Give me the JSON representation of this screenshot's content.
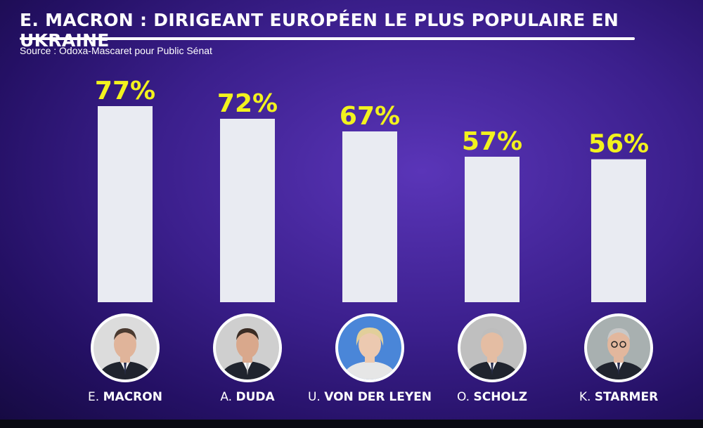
{
  "header": {
    "title": "E. MACRON : DIRIGEANT EUROPÉEN LE PLUS POPULAIRE EN UKRAINE",
    "source": "Source : Odoxa-Mascaret pour Public Sénat"
  },
  "colors": {
    "bar": "#e9ebf2",
    "value_label": "#f2f21e",
    "text": "#ffffff"
  },
  "chart_data": {
    "type": "bar",
    "title": "E. MACRON : DIRIGEANT EUROPÉEN LE PLUS POPULAIRE EN UKRAINE",
    "categories": [
      "E. MACRON",
      "A. DUDA",
      "U. VON DER LEYEN",
      "O. SCHOLZ",
      "K. STARMER"
    ],
    "values": [
      77,
      72,
      67,
      57,
      56
    ],
    "value_labels": [
      "77%",
      "72%",
      "67%",
      "57%",
      "56%"
    ],
    "unit": "%",
    "grid": false,
    "legend": "none"
  },
  "leaders": [
    {
      "initial": "E.",
      "surname": "MACRON",
      "photo_icon": "macron-portrait-icon"
    },
    {
      "initial": "A.",
      "surname": "DUDA",
      "photo_icon": "duda-portrait-icon"
    },
    {
      "initial": "U.",
      "surname": "VON DER LEYEN",
      "photo_icon": "von-der-leyen-portrait-icon"
    },
    {
      "initial": "O.",
      "surname": "SCHOLZ",
      "photo_icon": "scholz-portrait-icon"
    },
    {
      "initial": "K.",
      "surname": "STARMER",
      "photo_icon": "starmer-portrait-icon"
    }
  ]
}
